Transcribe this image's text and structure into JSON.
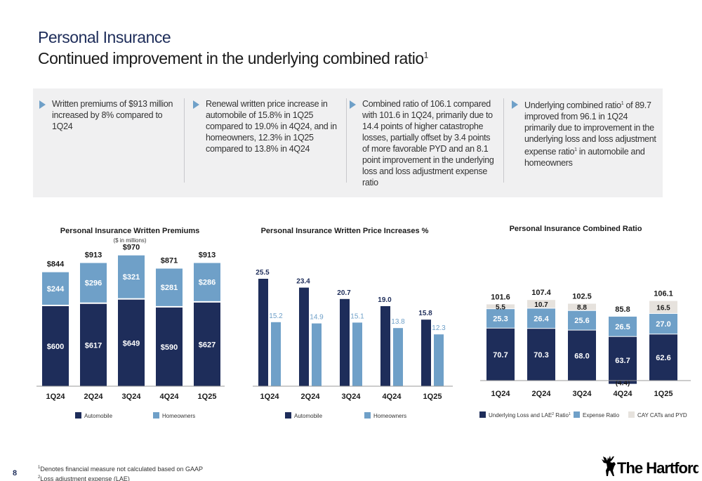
{
  "page": {
    "title": "Personal Insurance",
    "subtitle": "Continued improvement in the underlying combined ratio",
    "subtitle_sup": "1",
    "page_number": "8",
    "footnote1_sup": "1",
    "footnote1": "Denotes financial measure not calculated based on GAAP",
    "footnote2_sup": "2",
    "footnote2": "Loss adjustment expense (LAE)",
    "logo_text": "The Hartford"
  },
  "bullets": [
    {
      "text": "Written premiums of $913 million increased by 8% compared to 1Q24"
    },
    {
      "text": "Renewal written price increase in automobile of 15.8% in 1Q25 compared to 19.0% in 4Q24, and in homeowners, 12.3% in 1Q25 compared to 13.8% in 4Q24"
    },
    {
      "text": "Combined ratio of 106.1 compared with 101.6 in 1Q24, primarily due to 14.4 points of higher catastrophe losses, partially offset by 3.4 points of more favorable PYD and an 8.1 point improvement in the underlying loss and loss adjustment expense ratio"
    },
    {
      "text_a": "Underlying combined ratio",
      "sup_a": "1",
      "text_b": " of 89.7 improved from 96.1 in 1Q24 primarily due to improvement in the underlying loss and loss adjustment expense ratio",
      "sup_b": "1",
      "text_c": " in automobile and homeowners"
    }
  ],
  "colors": {
    "dark": "#1e2d5a",
    "light": "#6fa0c8",
    "cat": "#e6e2dd"
  },
  "chart_data": [
    {
      "type": "bar",
      "stacked": true,
      "title": "Personal Insurance Written Premiums",
      "subtitle": "($ in millions)",
      "categories": [
        "1Q24",
        "2Q24",
        "3Q24",
        "4Q24",
        "1Q25"
      ],
      "series": [
        {
          "name": "Automobile",
          "values": [
            600,
            617,
            649,
            590,
            627
          ],
          "labels": [
            "$600",
            "$617",
            "$649",
            "$590",
            "$627"
          ]
        },
        {
          "name": "Homeowners",
          "values": [
            244,
            296,
            321,
            281,
            286
          ],
          "labels": [
            "$244",
            "$296",
            "$321",
            "$281",
            "$286"
          ]
        }
      ],
      "totals": [
        "$844",
        "$913",
        "$970",
        "$871",
        "$913"
      ],
      "legend_position": "bottom"
    },
    {
      "type": "bar",
      "grouped": true,
      "title": "Personal Insurance Written Price Increases %",
      "categories": [
        "1Q24",
        "2Q24",
        "3Q24",
        "4Q24",
        "1Q25"
      ],
      "series": [
        {
          "name": "Automobile",
          "values": [
            25.5,
            23.4,
            20.7,
            19.0,
            15.8
          ],
          "labels": [
            "25.5",
            "23.4",
            "20.7",
            "19.0",
            "15.8"
          ]
        },
        {
          "name": "Homeowners",
          "values": [
            15.2,
            14.9,
            15.1,
            13.8,
            12.3
          ],
          "labels": [
            "15.2",
            "14.9",
            "15.1",
            "13.8",
            "12.3"
          ]
        }
      ],
      "legend_position": "bottom"
    },
    {
      "type": "bar",
      "stacked": true,
      "title": "Personal Insurance Combined Ratio",
      "categories": [
        "1Q24",
        "2Q24",
        "3Q24",
        "4Q24",
        "1Q25"
      ],
      "series": [
        {
          "name": "Underlying Loss and LAE",
          "name_sup": "2",
          "name_suffix": " Ratio",
          "name_suffix_sup": "1",
          "values": [
            70.7,
            70.3,
            68.0,
            63.7,
            62.6
          ],
          "labels": [
            "70.7",
            "70.3",
            "68.0",
            "63.7",
            "62.6"
          ]
        },
        {
          "name": "Expense Ratio",
          "values": [
            25.3,
            26.4,
            25.6,
            26.5,
            27.0
          ],
          "labels": [
            "25.3",
            "26.4",
            "25.6",
            "26.5",
            "27.0"
          ]
        },
        {
          "name": "CAY CATs and PYD",
          "values": [
            5.5,
            10.7,
            8.8,
            -4.4,
            16.5
          ],
          "labels": [
            "5.5",
            "10.7",
            "8.8",
            "(4.4)",
            "16.5"
          ]
        }
      ],
      "totals": [
        "101.6",
        "107.4",
        "102.5",
        "85.8",
        "106.1"
      ],
      "legend_position": "bottom"
    }
  ]
}
